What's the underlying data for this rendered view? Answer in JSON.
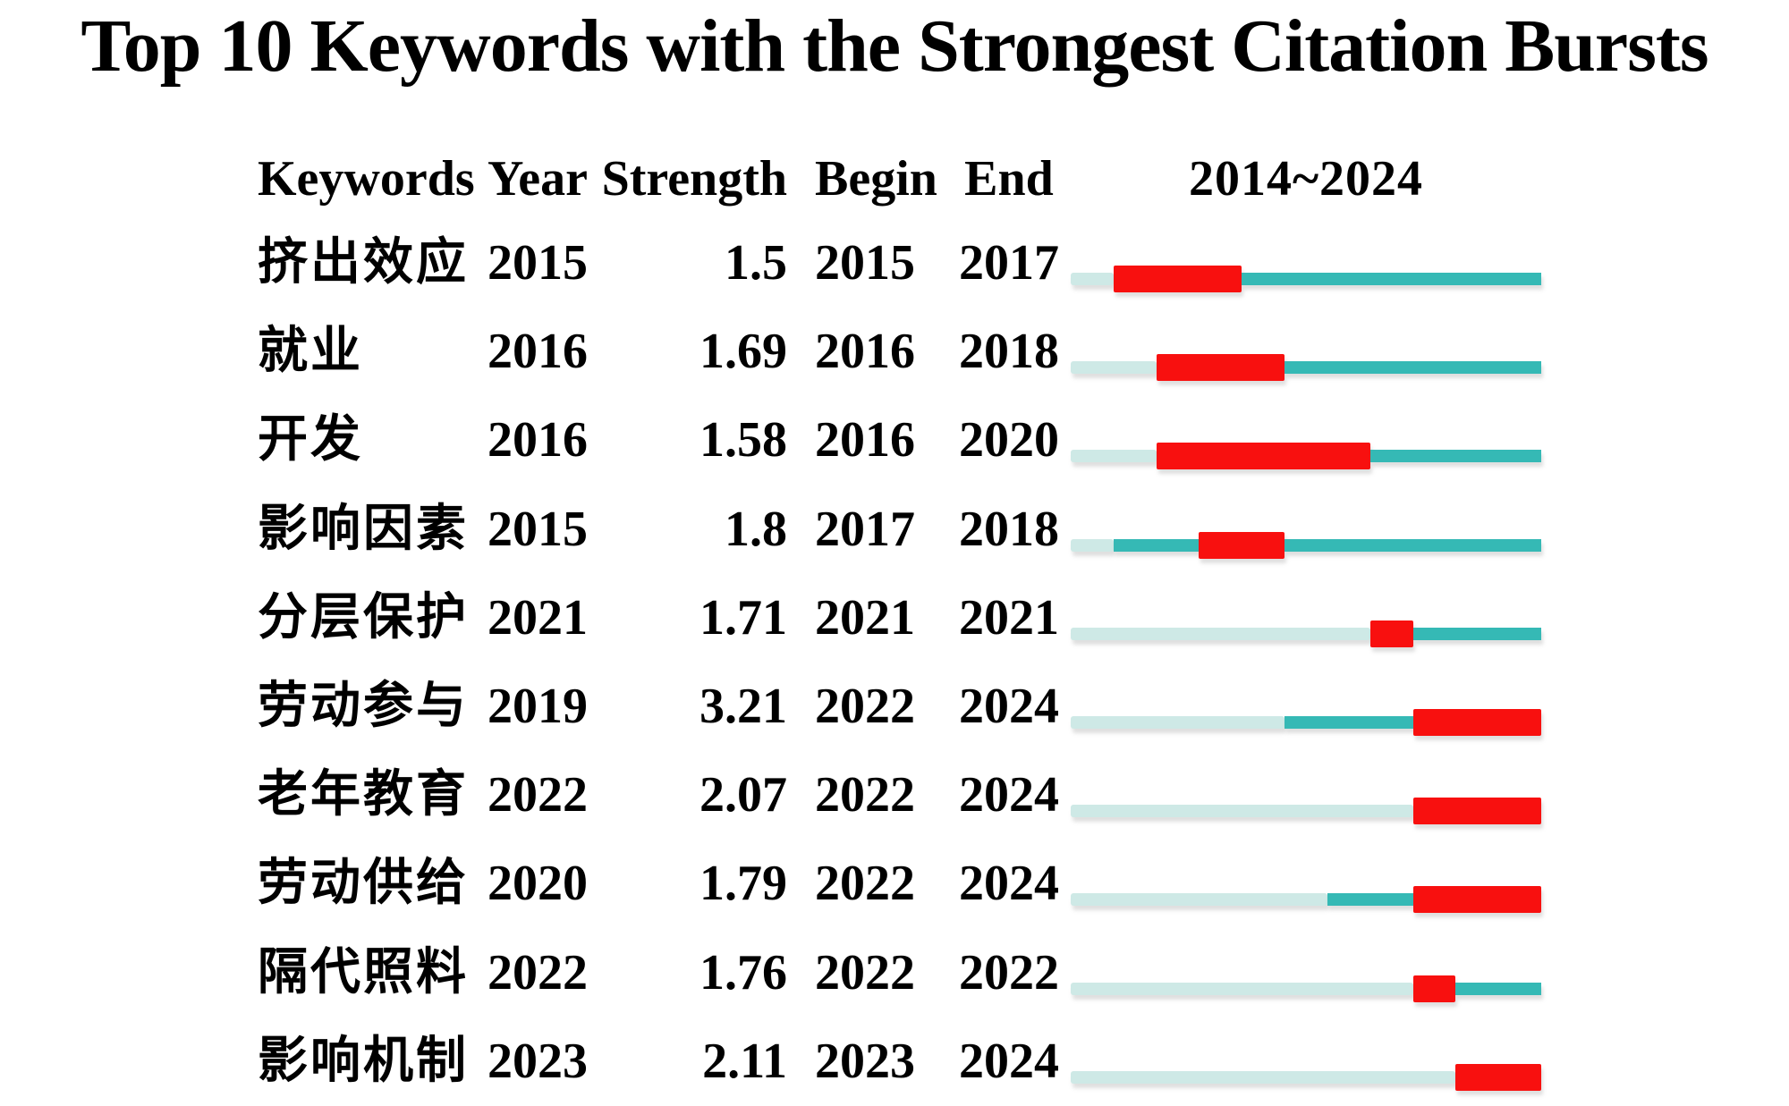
{
  "title": "Top 10 Keywords with the Strongest Citation Bursts",
  "columns": {
    "keywords": "Keywords",
    "year": "Year",
    "strength": "Strength",
    "begin": "Begin",
    "end": "End",
    "timeline": "2014~2024"
  },
  "colors": {
    "burst_red": "#f8100f",
    "active_teal": "#35b9b5",
    "inactive_pale": "#cee9e6"
  },
  "chart_data": {
    "type": "table",
    "title": "Top 10 Keywords with the Strongest Citation Bursts",
    "columns": [
      "Keywords",
      "Year",
      "Strength",
      "Begin",
      "End",
      "2014~2024"
    ],
    "timeline_label": "2014~2024",
    "timeline_range": [
      2014,
      2024
    ],
    "rows": [
      {
        "keyword": "挤出效应",
        "year": 2015,
        "strength": "1.5",
        "begin": 2015,
        "end": 2017
      },
      {
        "keyword": "就业",
        "year": 2016,
        "strength": "1.69",
        "begin": 2016,
        "end": 2018
      },
      {
        "keyword": "开发",
        "year": 2016,
        "strength": "1.58",
        "begin": 2016,
        "end": 2020
      },
      {
        "keyword": "影响因素",
        "year": 2015,
        "strength": "1.8",
        "begin": 2017,
        "end": 2018
      },
      {
        "keyword": "分层保护",
        "year": 2021,
        "strength": "1.71",
        "begin": 2021,
        "end": 2021
      },
      {
        "keyword": "劳动参与",
        "year": 2019,
        "strength": "3.21",
        "begin": 2022,
        "end": 2024
      },
      {
        "keyword": "老年教育",
        "year": 2022,
        "strength": "2.07",
        "begin": 2022,
        "end": 2024
      },
      {
        "keyword": "劳动供给",
        "year": 2020,
        "strength": "1.79",
        "begin": 2022,
        "end": 2024
      },
      {
        "keyword": "隔代照料",
        "year": 2022,
        "strength": "1.76",
        "begin": 2022,
        "end": 2022
      },
      {
        "keyword": "影响机制",
        "year": 2023,
        "strength": "2.11",
        "begin": 2023,
        "end": 2024
      }
    ]
  }
}
